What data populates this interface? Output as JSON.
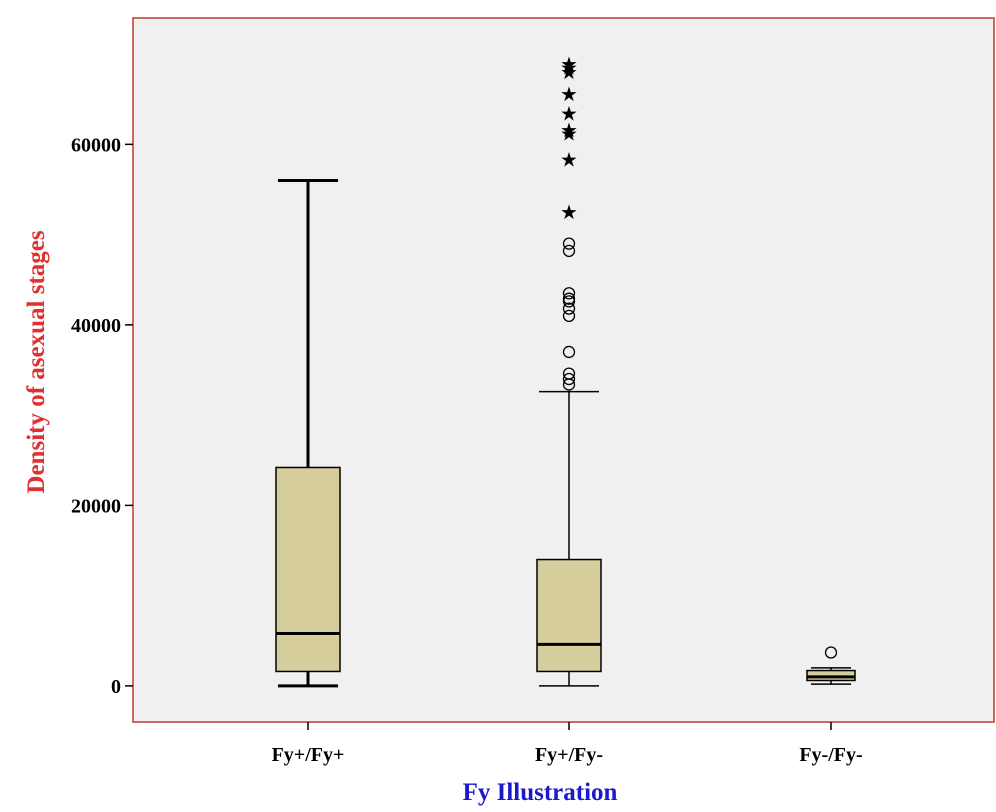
{
  "chart_data": {
    "type": "boxplot",
    "xlabel": "Fy Illustration",
    "ylabel": "Density of asexual stages",
    "ylim": [
      -4000,
      74000
    ],
    "yticks": [
      0,
      20000,
      40000,
      60000
    ],
    "ytick_labels": [
      "0",
      "20000",
      "40000",
      "60000"
    ],
    "grid": false,
    "colors": {
      "plot_background": "#f0f0f0",
      "plot_border": "#c0392b",
      "box_fill": "#d6cf9d",
      "ylabel_color": "#e03030",
      "xlabel_color": "#1a1acc"
    },
    "categories": [
      "Fy+/Fy+",
      "Fy+/Fy-",
      "Fy-/Fy-"
    ],
    "boxes": [
      {
        "category": "Fy+/Fy+",
        "whisker_low": 0,
        "q1": 1600,
        "median": 5800,
        "q3": 24200,
        "whisker_high": 56000,
        "outliers": [],
        "extremes": []
      },
      {
        "category": "Fy+/Fy-",
        "whisker_low": 0,
        "q1": 1600,
        "median": 4600,
        "q3": 14000,
        "whisker_high": 32600,
        "outliers": [
          33400,
          34000,
          34600,
          37000,
          41000,
          41800,
          42600,
          42900,
          43500,
          48200,
          49000
        ],
        "extremes": [
          52500,
          58300,
          61200,
          61600,
          63400,
          65600,
          68000,
          68500,
          68900
        ]
      },
      {
        "category": "Fy-/Fy-",
        "whisker_low": 200,
        "q1": 600,
        "median": 1000,
        "q3": 1700,
        "whisker_high": 2000,
        "outliers": [
          3700
        ],
        "extremes": []
      }
    ]
  }
}
